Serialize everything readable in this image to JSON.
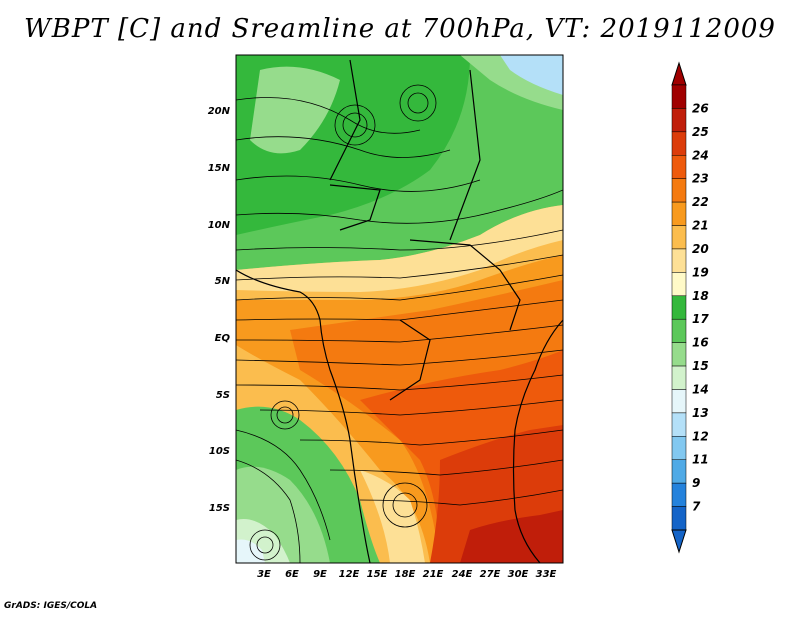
{
  "title": "WBPT [C] and Sreamline at 700hPa, VT: 2019112009",
  "footer": "GrADS: IGES/COLA",
  "map": {
    "lat_labels": [
      "20N",
      "15N",
      "10N",
      "5N",
      "EQ",
      "5S",
      "10S",
      "15S"
    ],
    "lon_labels": [
      "3E",
      "6E",
      "9E",
      "12E",
      "15E",
      "18E",
      "21E",
      "24E",
      "27E",
      "30E",
      "33E"
    ]
  },
  "colorbar": {
    "labels": [
      "26",
      "25",
      "24",
      "23",
      "22",
      "21",
      "20",
      "19",
      "18",
      "17",
      "16",
      "15",
      "14",
      "13",
      "12",
      "11",
      "9",
      "7"
    ],
    "colors": [
      "#a00000",
      "#c01e0a",
      "#dc3c0a",
      "#ee5a0c",
      "#f47a10",
      "#f89a1e",
      "#fbbd4e",
      "#fde096",
      "#fffac8",
      "#34b83c",
      "#5cc85a",
      "#96dc8c",
      "#d2f2cc",
      "#e6f6fa",
      "#b4e0f8",
      "#82c8f0",
      "#50aae6",
      "#2482dc",
      "#1464c8"
    ]
  }
}
